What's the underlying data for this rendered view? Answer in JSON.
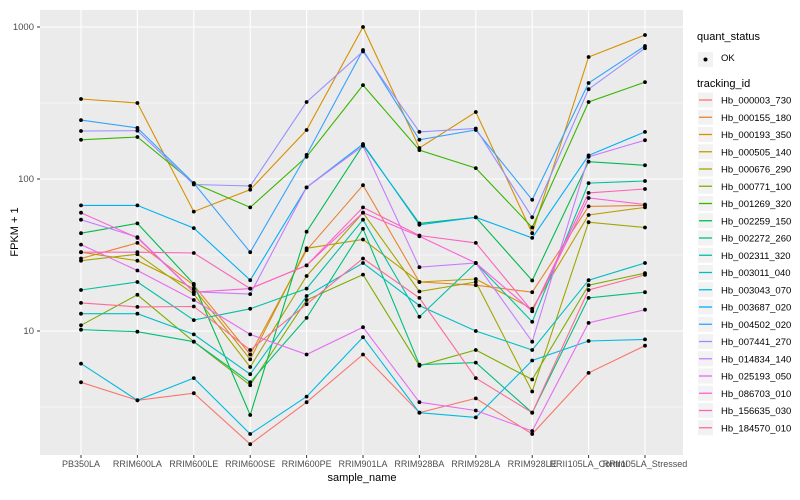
{
  "chart_data": {
    "type": "line",
    "title": "",
    "xlabel": "sample_name",
    "ylabel": "FPKM + 1",
    "y_scale": "log10",
    "y_tick_values": [
      10,
      100,
      1000
    ],
    "y_tick_labels": [
      "10",
      "100",
      "1000"
    ],
    "y_minor_values": [
      3.162,
      31.62,
      316.2
    ],
    "ylim": [
      1.5,
      1300
    ],
    "grid": true,
    "legend_position": "right",
    "categories": [
      "PB350LA",
      "RRIM600LA",
      "RRIM600LE",
      "RRIM600SE",
      "RRIM600PE",
      "RRIM901LA",
      "RRIM928BA",
      "RRIM928LA",
      "RRIM928LE",
      "RRII105LA_Control",
      "RRII105LA_Stressed"
    ],
    "series": [
      {
        "name": "Hb_000003_730",
        "color": "#F8766D",
        "values": [
          4.6,
          3.5,
          3.9,
          1.8,
          3.4,
          7.0,
          2.9,
          3.6,
          2.1,
          5.3,
          8.0
        ]
      },
      {
        "name": "Hb_000155_180",
        "color": "#EA8331",
        "values": [
          30,
          38,
          20,
          7.0,
          34,
          91,
          21,
          20,
          18,
          66,
          67
        ]
      },
      {
        "name": "Hb_000193_350",
        "color": "#D89000",
        "values": [
          336,
          316,
          61,
          85,
          210,
          1000,
          160,
          276,
          44,
          635,
          886
        ]
      },
      {
        "name": "Hb_000505_140",
        "color": "#C09B00",
        "values": [
          33,
          29,
          19,
          6.5,
          35,
          40,
          21,
          22,
          14,
          58,
          65
        ]
      },
      {
        "name": "Hb_000676_290",
        "color": "#A3A500",
        "values": [
          29,
          32,
          17.5,
          5.8,
          23,
          60,
          18.2,
          21,
          4.0,
          52,
          48
        ]
      },
      {
        "name": "Hb_000771_100",
        "color": "#7CAE00",
        "values": [
          10.9,
          17.3,
          8.5,
          4.4,
          16,
          23.5,
          5.9,
          7.5,
          4.8,
          20,
          24
        ]
      },
      {
        "name": "Hb_001269_320",
        "color": "#39B600",
        "values": [
          181,
          189,
          94,
          65,
          140,
          415,
          155,
          118,
          48,
          321,
          434
        ]
      },
      {
        "name": "Hb_002259_150",
        "color": "#00BB4E",
        "values": [
          44,
          51,
          20.4,
          2.8,
          45,
          167,
          51,
          56,
          21.5,
          130,
          123
        ]
      },
      {
        "name": "Hb_002272_260",
        "color": "#00BF7D",
        "values": [
          10.2,
          9.9,
          8.5,
          4.6,
          12.2,
          47,
          6.0,
          6.2,
          2.9,
          16.5,
          18
        ]
      },
      {
        "name": "Hb_002311_320",
        "color": "#00C1A3",
        "values": [
          18.6,
          21,
          11.8,
          14,
          19,
          54,
          12.4,
          28,
          11.5,
          94,
          97
        ]
      },
      {
        "name": "Hb_003011_040",
        "color": "#00BFC4",
        "values": [
          13,
          13,
          9.5,
          5.2,
          17,
          28,
          14.7,
          10,
          7.5,
          21.6,
          28
        ]
      },
      {
        "name": "Hb_003043_070",
        "color": "#00BAE0",
        "values": [
          6.1,
          3.5,
          4.9,
          2.1,
          3.7,
          9.1,
          2.9,
          2.7,
          6.4,
          8.6,
          8.8
        ]
      },
      {
        "name": "Hb_003687_020",
        "color": "#00B0F6",
        "values": [
          67,
          67,
          47.5,
          21.6,
          88,
          170,
          50,
          56,
          41,
          143,
          204
        ]
      },
      {
        "name": "Hb_004502_020",
        "color": "#35A2FF",
        "values": [
          244,
          217,
          94,
          33,
          144,
          706,
          181,
          210,
          73,
          428,
          750
        ]
      },
      {
        "name": "Hb_007441_270",
        "color": "#9590FF",
        "values": [
          207,
          208,
          92,
          90,
          321,
          690,
          204,
          215,
          56,
          390,
          725
        ]
      },
      {
        "name": "Hb_014834_140",
        "color": "#C77CFF",
        "values": [
          54,
          41.5,
          18.1,
          17.5,
          88,
          165,
          26.3,
          28,
          8.5,
          140,
          180
        ]
      },
      {
        "name": "Hb_025193_050",
        "color": "#E76BF3",
        "values": [
          37,
          25,
          16,
          9.5,
          7.0,
          10.6,
          3.4,
          3.0,
          2.2,
          11.3,
          13.8
        ]
      },
      {
        "name": "Hb_086703_010",
        "color": "#FA62DB",
        "values": [
          60,
          41,
          18,
          19,
          27,
          60,
          42,
          28,
          13.5,
          75,
          68
        ]
      },
      {
        "name": "Hb_156635_030",
        "color": "#FF62BC",
        "values": [
          33,
          33,
          32.6,
          19,
          27,
          65,
          42.5,
          38,
          13.5,
          81,
          86
        ]
      },
      {
        "name": "Hb_184570_010",
        "color": "#FF6A98",
        "values": [
          15.3,
          14.4,
          14.5,
          7.5,
          15,
          30,
          16.5,
          4.9,
          2.9,
          18.6,
          23.4
        ]
      }
    ],
    "legend": {
      "quant_status": {
        "title": "quant_status",
        "items": [
          {
            "label": "OK",
            "symbol": "point"
          }
        ]
      },
      "tracking_id": {
        "title": "tracking_id"
      }
    },
    "colors": {
      "panel_bg": "#EBEBEB",
      "grid": "#FFFFFF",
      "tick_text": "#4D4D4D",
      "tick_mark": "#333333",
      "point": "#000000",
      "legend_key_bg": "#F2F2F2"
    }
  }
}
